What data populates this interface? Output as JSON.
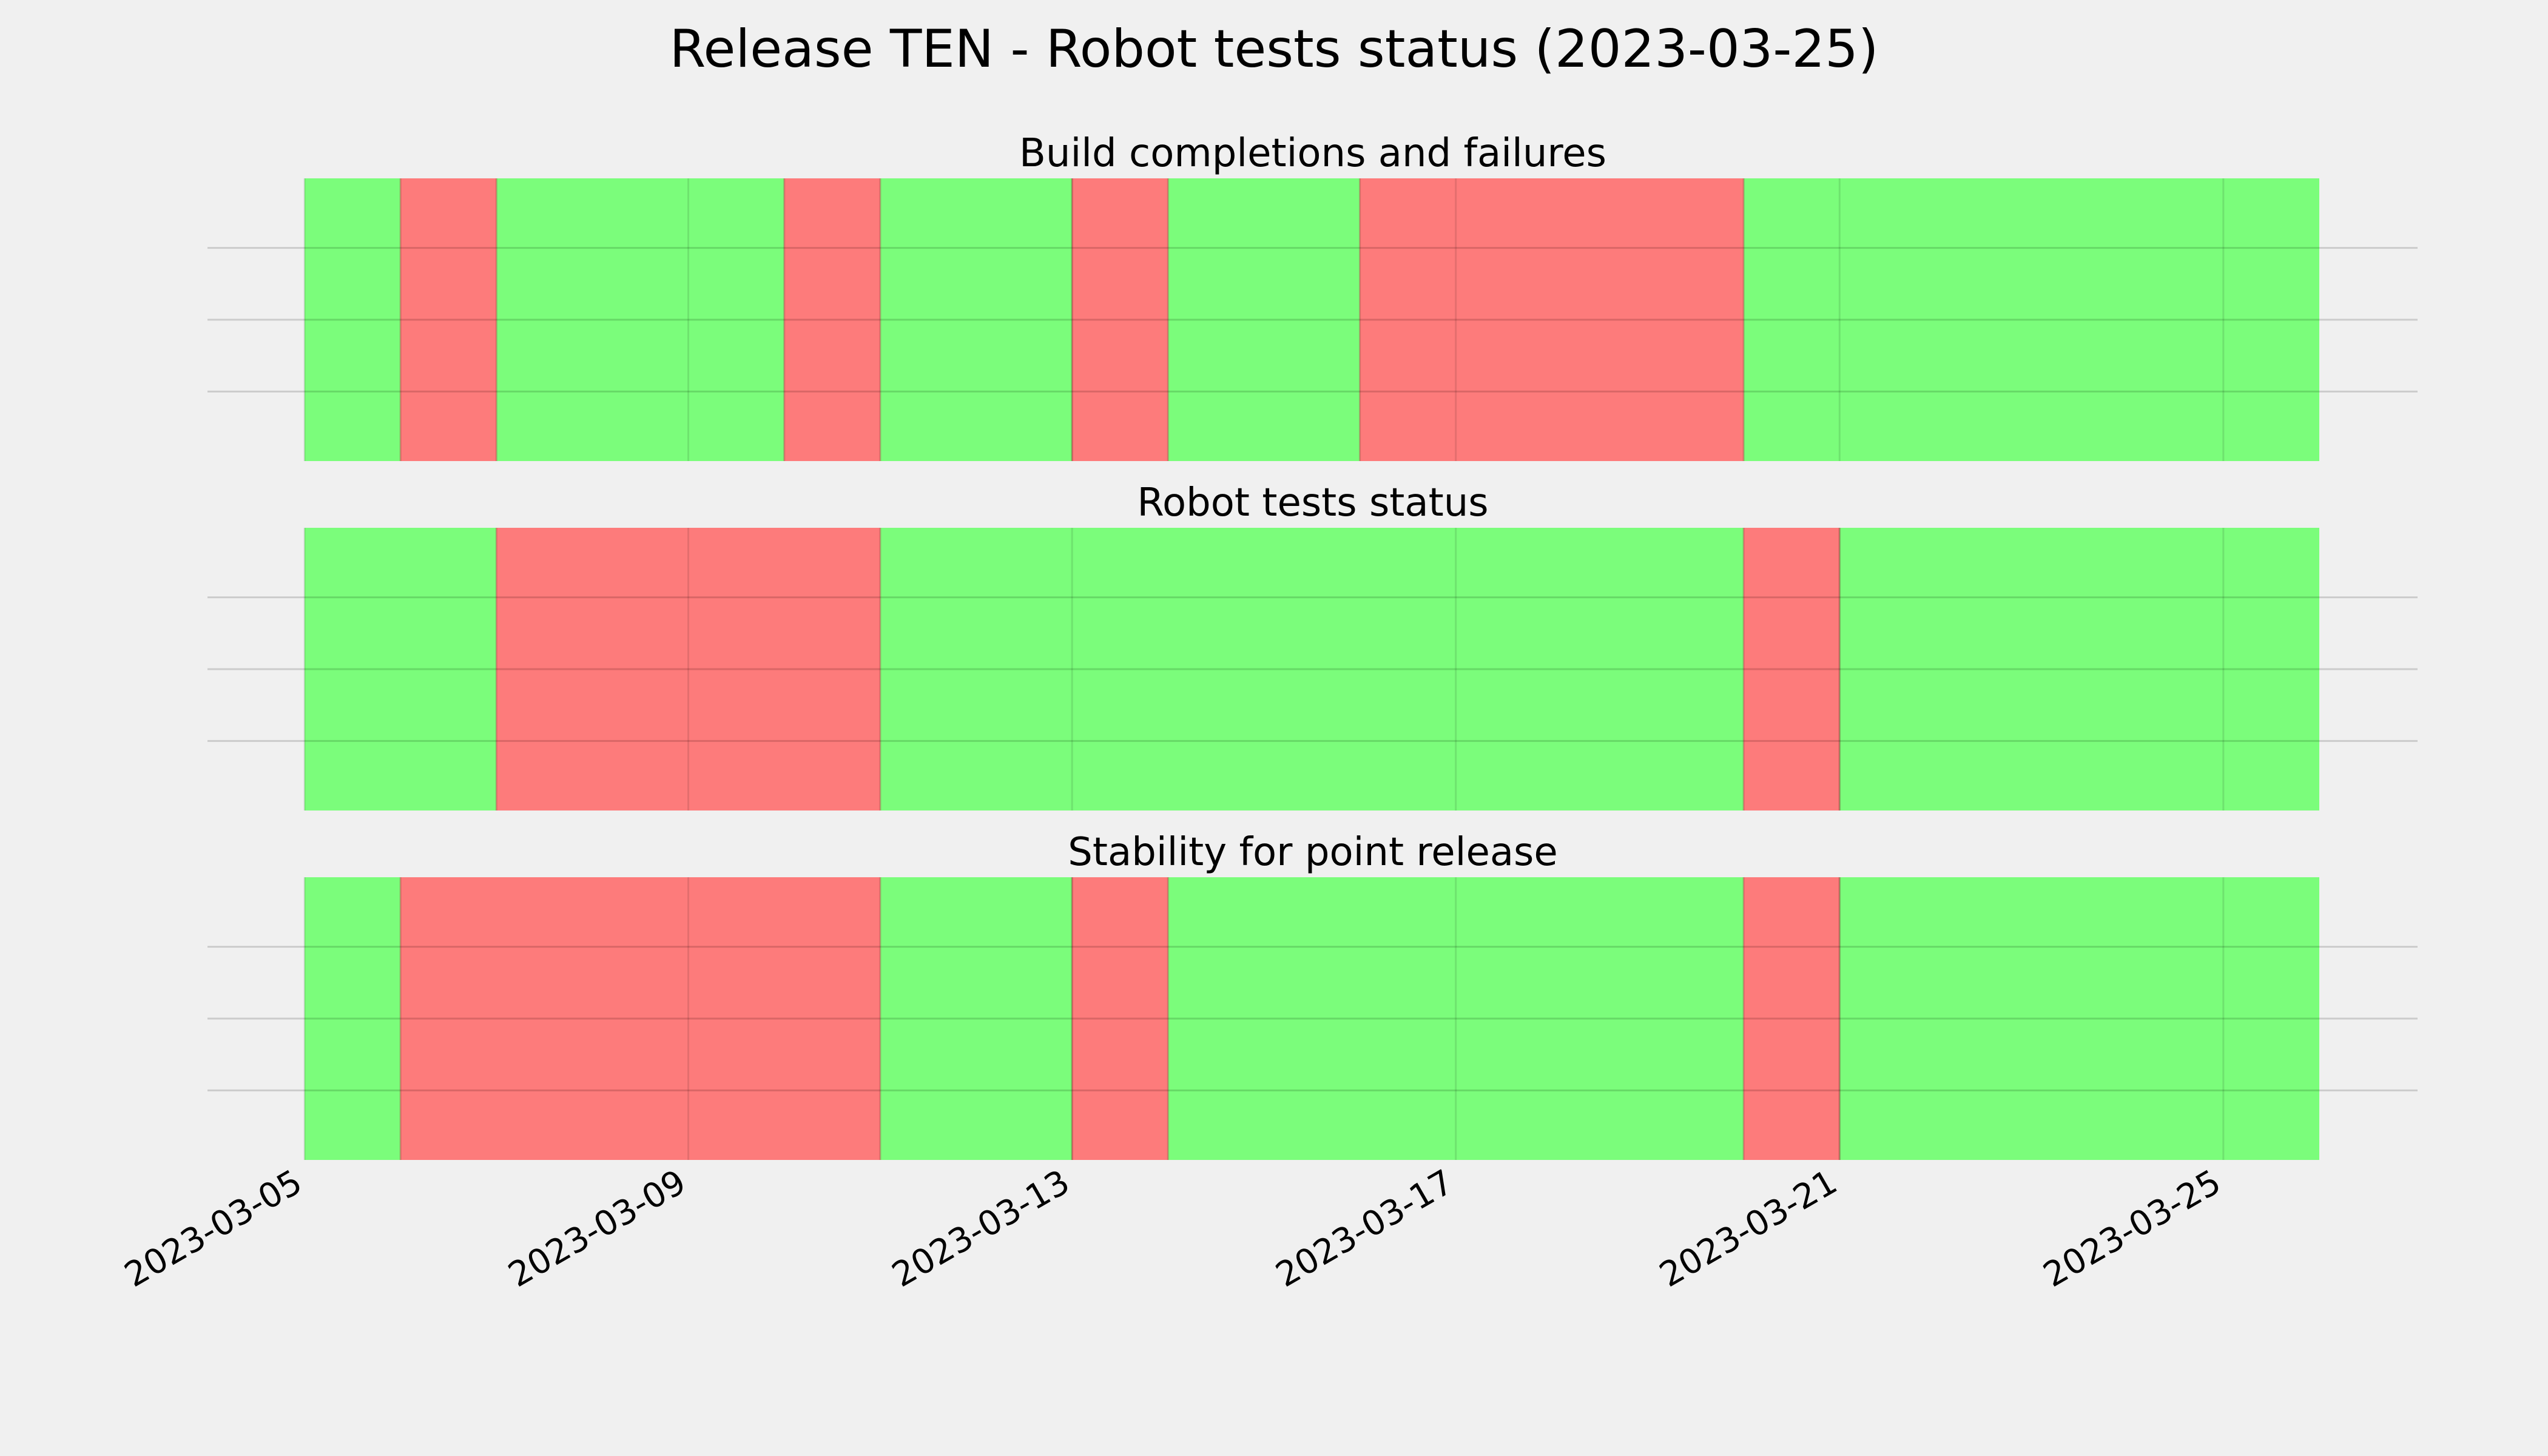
{
  "chart_data": {
    "type": "timeline",
    "title": "Release TEN - Robot tests status (2023-03-25)",
    "x_axis": {
      "type": "date",
      "range": [
        "2023-03-05",
        "2023-03-26"
      ],
      "ticks": [
        "2023-03-05",
        "2023-03-09",
        "2023-03-13",
        "2023-03-17",
        "2023-03-21",
        "2023-03-25"
      ],
      "tick_rotation_deg": 30
    },
    "grid": true,
    "status_colors": {
      "pass": "#66ff66",
      "fail": "#ff6666"
    },
    "panels": [
      {
        "title": "Build completions and failures",
        "segments": [
          {
            "start": "2023-03-05",
            "end": "2023-03-06",
            "status": "pass"
          },
          {
            "start": "2023-03-06",
            "end": "2023-03-07",
            "status": "fail"
          },
          {
            "start": "2023-03-07",
            "end": "2023-03-10",
            "status": "pass"
          },
          {
            "start": "2023-03-10",
            "end": "2023-03-11",
            "status": "fail"
          },
          {
            "start": "2023-03-11",
            "end": "2023-03-13",
            "status": "pass"
          },
          {
            "start": "2023-03-13",
            "end": "2023-03-14",
            "status": "fail"
          },
          {
            "start": "2023-03-14",
            "end": "2023-03-16",
            "status": "pass"
          },
          {
            "start": "2023-03-16",
            "end": "2023-03-20",
            "status": "fail"
          },
          {
            "start": "2023-03-20",
            "end": "2023-03-26",
            "status": "pass"
          }
        ]
      },
      {
        "title": "Robot tests status",
        "segments": [
          {
            "start": "2023-03-05",
            "end": "2023-03-07",
            "status": "pass"
          },
          {
            "start": "2023-03-07",
            "end": "2023-03-11",
            "status": "fail"
          },
          {
            "start": "2023-03-11",
            "end": "2023-03-20",
            "status": "pass"
          },
          {
            "start": "2023-03-20",
            "end": "2023-03-21",
            "status": "fail"
          },
          {
            "start": "2023-03-21",
            "end": "2023-03-26",
            "status": "pass"
          }
        ]
      },
      {
        "title": "Stability for point release",
        "segments": [
          {
            "start": "2023-03-05",
            "end": "2023-03-06",
            "status": "pass"
          },
          {
            "start": "2023-03-06",
            "end": "2023-03-11",
            "status": "fail"
          },
          {
            "start": "2023-03-11",
            "end": "2023-03-13",
            "status": "pass"
          },
          {
            "start": "2023-03-13",
            "end": "2023-03-14",
            "status": "fail"
          },
          {
            "start": "2023-03-14",
            "end": "2023-03-20",
            "status": "pass"
          },
          {
            "start": "2023-03-20",
            "end": "2023-03-21",
            "status": "fail"
          },
          {
            "start": "2023-03-21",
            "end": "2023-03-26",
            "status": "pass"
          }
        ]
      }
    ]
  }
}
